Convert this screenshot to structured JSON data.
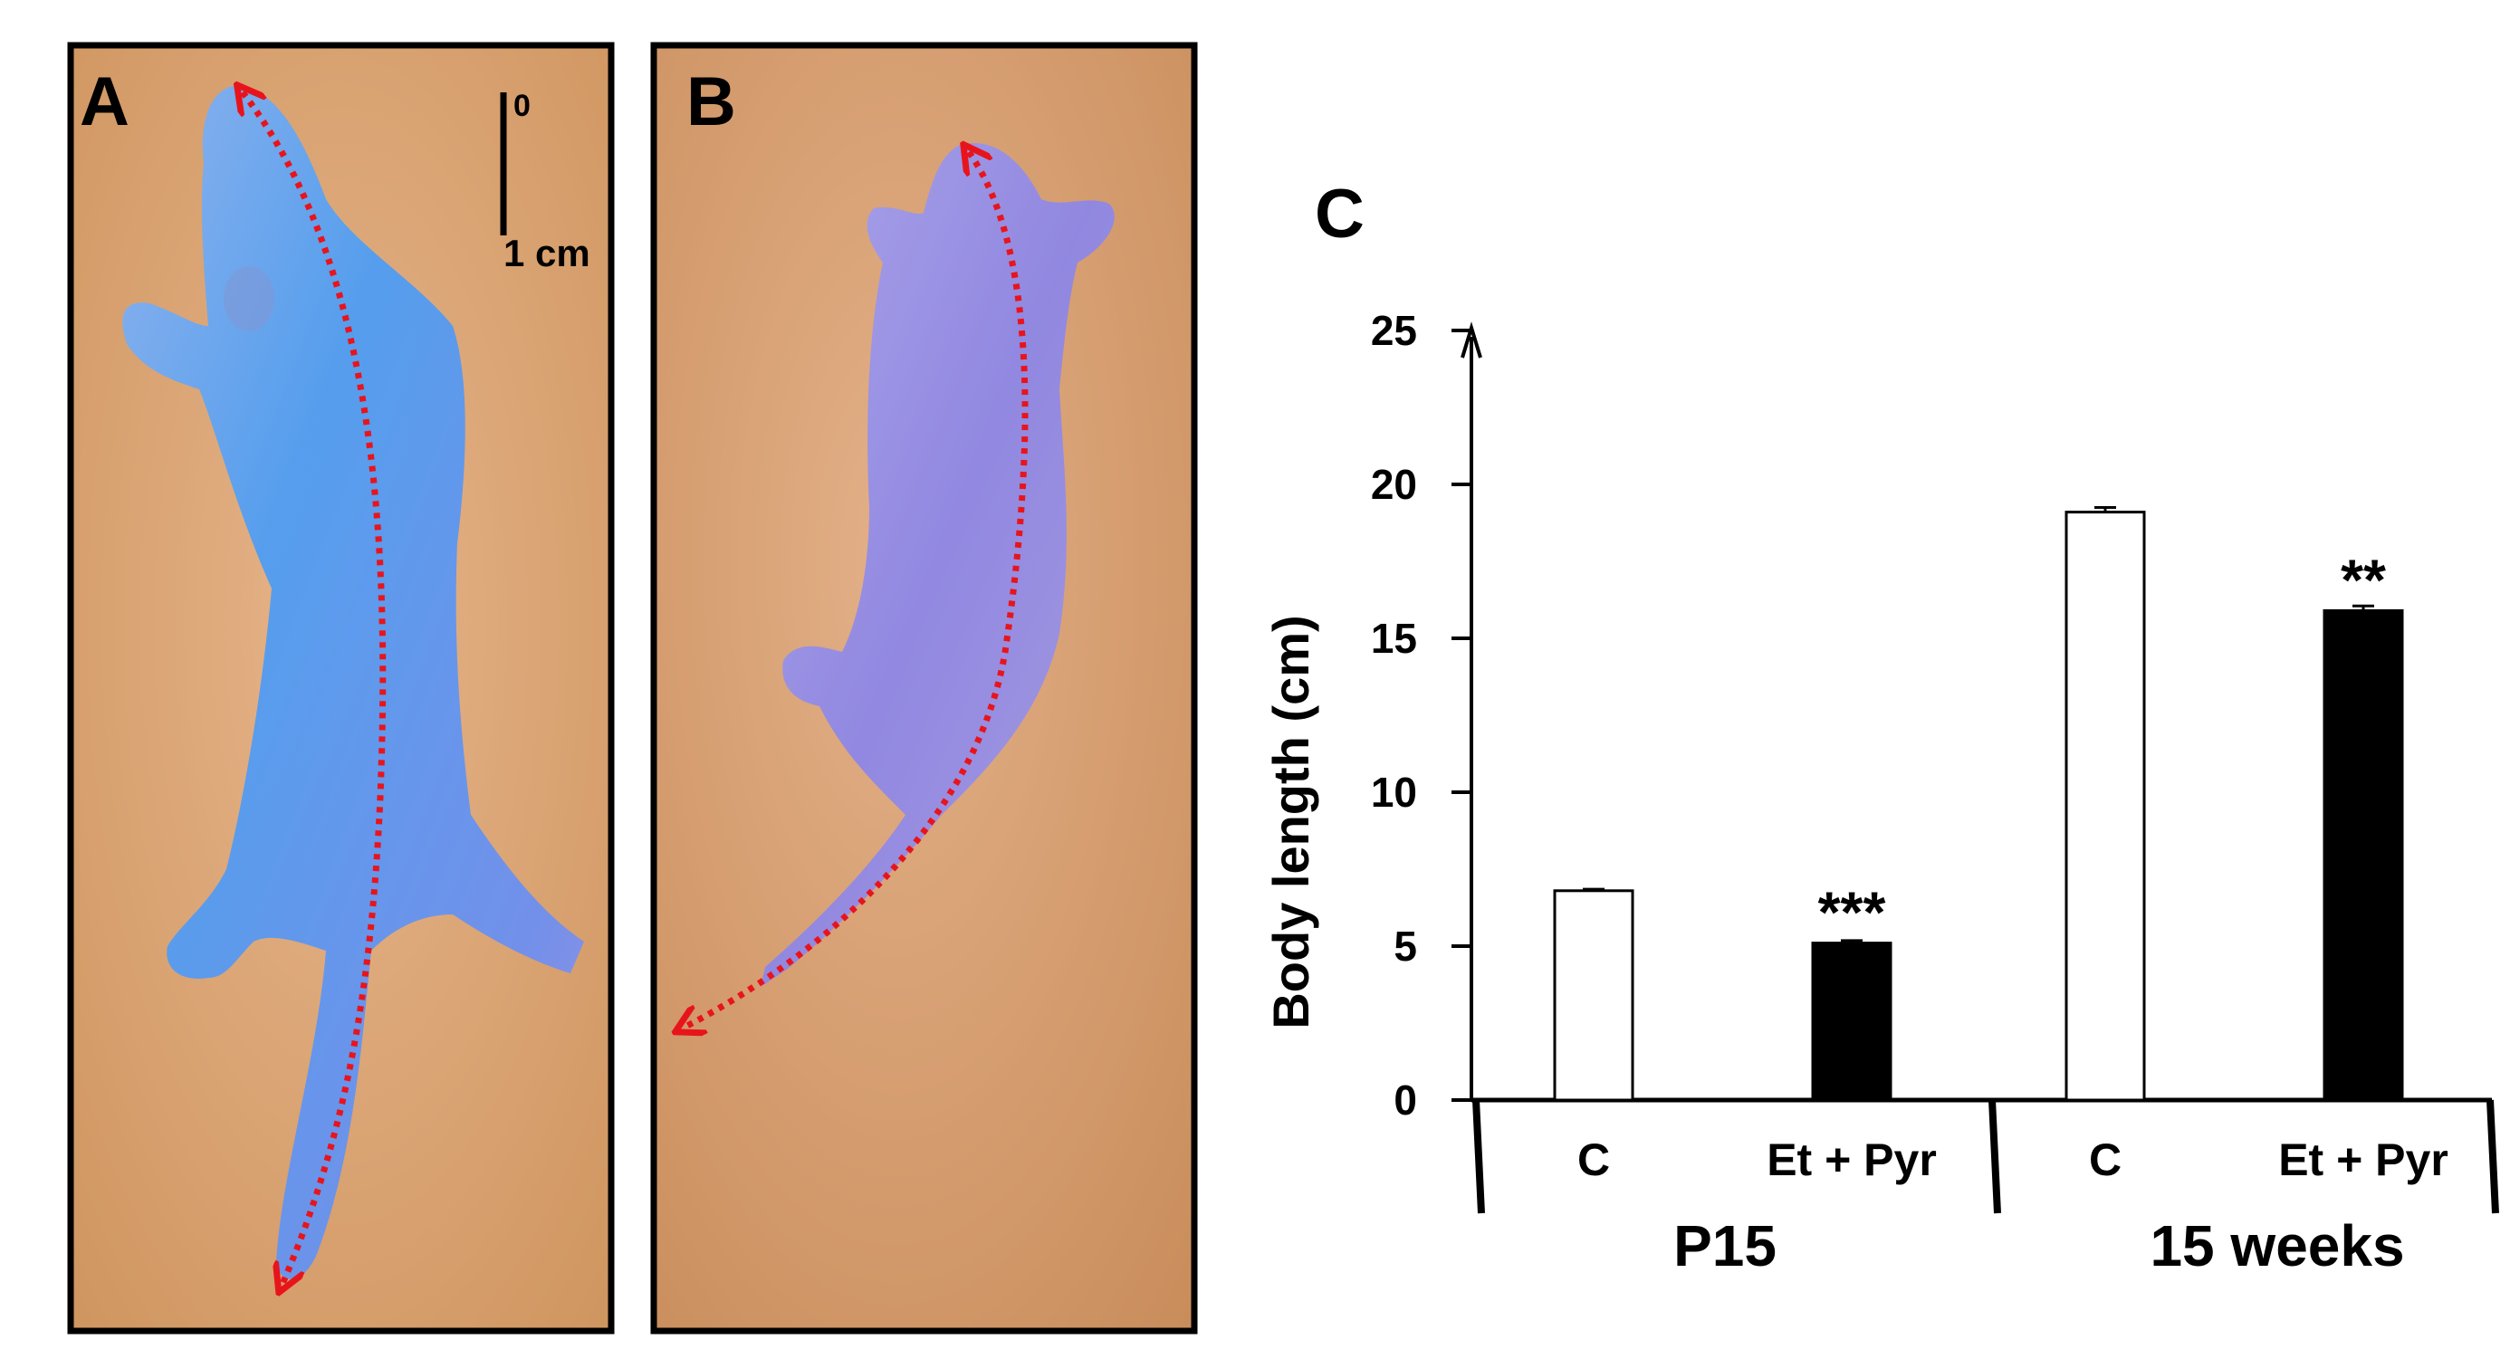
{
  "panels": {
    "a": {
      "label": "A",
      "scale_bar": {
        "top_label": "0",
        "bottom_label": "1 cm"
      }
    },
    "b": {
      "label": "B"
    },
    "c": {
      "label": "C"
    }
  },
  "colors": {
    "background_tan": "#d9a477",
    "mouse_blue": "#5a9ef2",
    "mouse_lavender": "#9690e6",
    "arrow_red": "#e8141c",
    "control_bar": "#ffffff",
    "treated_bar": "#000000"
  },
  "chart_data": {
    "type": "bar",
    "ylabel": "Body length (cm)",
    "xlabel": "",
    "ylim": [
      0,
      25
    ],
    "yticks": [
      "0",
      "5",
      "10",
      "15",
      "20",
      "25"
    ],
    "groups": [
      {
        "name": "P15",
        "bars": [
          {
            "label": "C",
            "value": 6.8,
            "error": 0.05,
            "color": "#ffffff",
            "significance": ""
          },
          {
            "label": "Et + Pyr",
            "value": 5.1,
            "error": 0.08,
            "color": "#000000",
            "significance": "***"
          }
        ]
      },
      {
        "name": "15 weeks",
        "bars": [
          {
            "label": "C",
            "value": 19.1,
            "error": 0.15,
            "color": "#ffffff",
            "significance": ""
          },
          {
            "label": "Et + Pyr",
            "value": 15.9,
            "error": 0.15,
            "color": "#000000",
            "significance": "**"
          }
        ]
      }
    ],
    "grid": false,
    "legend": "none"
  }
}
